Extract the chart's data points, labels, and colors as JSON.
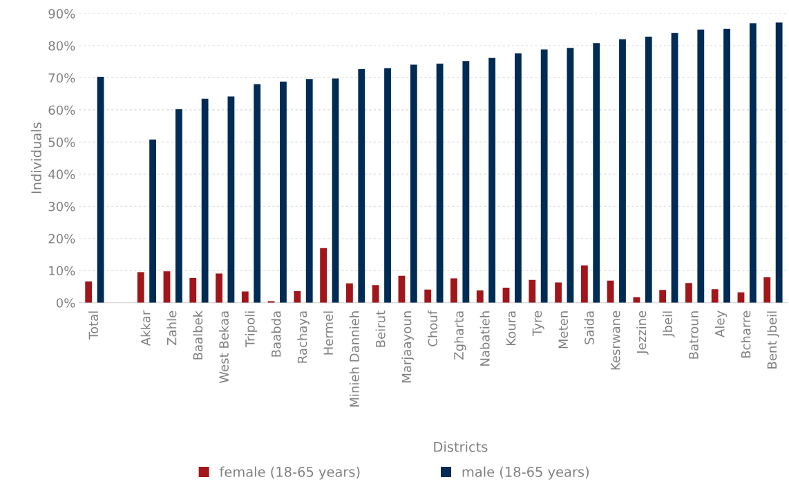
{
  "chart_data": {
    "type": "bar",
    "xlabel": "Districts",
    "ylabel": "Individuals",
    "categories": [
      "Total",
      null,
      "Akkar",
      "Zahle",
      "Baalbek",
      "West Bekaa",
      "Tripoli",
      "Baabda",
      "Rachaya",
      "Hermel",
      "Minieh Dannieh",
      "Beirut",
      "Marjaayoun",
      "Chouf",
      "Zgharta",
      "Nabatieh",
      "Koura",
      "Tyre",
      "Meten",
      "Saida",
      "Kesrwane",
      "Jezzine",
      "Jbeil",
      "Batroun",
      "Aley",
      "Bcharre",
      "Bent Jbeil"
    ],
    "series": [
      {
        "name": "female (18-65 years)",
        "color": "#a0161b",
        "values": [
          6.6,
          null,
          9.5,
          9.8,
          7.7,
          9.1,
          3.5,
          0.5,
          3.6,
          17.0,
          6.0,
          5.5,
          8.4,
          4.1,
          7.6,
          3.8,
          4.7,
          7.1,
          6.3,
          11.6,
          6.9,
          1.7,
          4.0,
          6.1,
          4.2,
          3.2,
          7.9
        ]
      },
      {
        "name": "male (18-65 years)",
        "color": "#002b54",
        "values": [
          70.3,
          null,
          50.8,
          60.2,
          63.5,
          64.2,
          68.0,
          68.8,
          69.6,
          69.8,
          72.7,
          73.0,
          74.1,
          74.4,
          75.2,
          76.2,
          77.6,
          78.8,
          79.3,
          80.8,
          82.0,
          82.8,
          83.9,
          85.0,
          85.2,
          87.0,
          87.2
        ]
      }
    ],
    "ylim": [
      0,
      90
    ],
    "yticks": [
      {
        "value": 0,
        "label": "0%"
      },
      {
        "value": 10,
        "label": "10%"
      },
      {
        "value": 20,
        "label": "20%"
      },
      {
        "value": 30,
        "label": "30%"
      },
      {
        "value": 40,
        "label": "40%"
      },
      {
        "value": 50,
        "label": "50%"
      },
      {
        "value": 60,
        "label": "60%"
      },
      {
        "value": 70,
        "label": "70%"
      },
      {
        "value": 80,
        "label": "80%"
      },
      {
        "value": 90,
        "label": "90%"
      }
    ],
    "grid": "y",
    "legend": "bottom"
  }
}
